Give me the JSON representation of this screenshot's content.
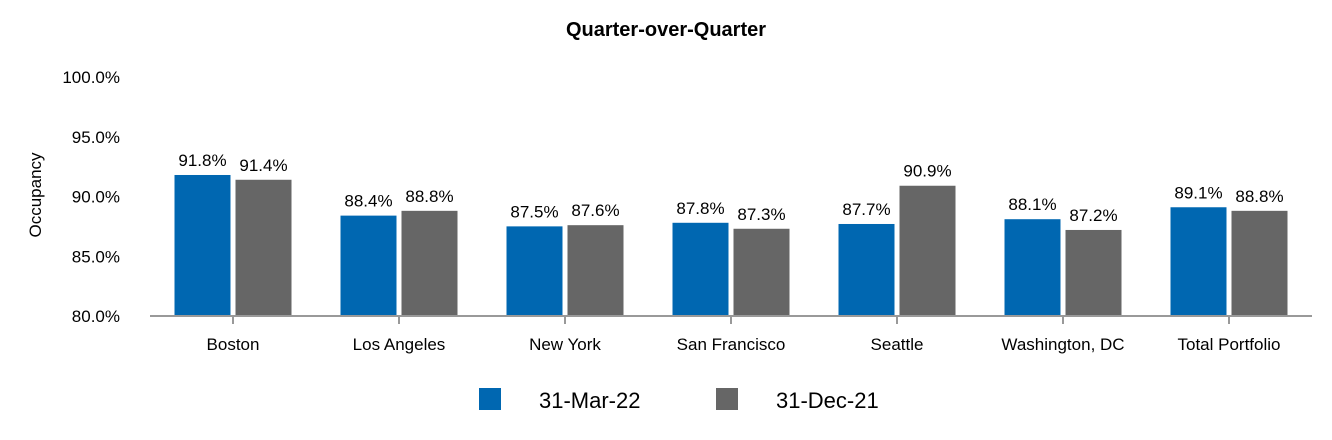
{
  "chart_data": {
    "type": "bar",
    "title": "Quarter-over-Quarter",
    "ylabel": "Occupancy",
    "xlabel": "",
    "ylim": [
      80,
      100
    ],
    "yticks": [
      "80.0%",
      "85.0%",
      "90.0%",
      "95.0%",
      "100.0%"
    ],
    "ytick_values": [
      80,
      85,
      90,
      95,
      100
    ],
    "categories": [
      "Boston",
      "Los Angeles",
      "New York",
      "San Francisco",
      "Seattle",
      "Washington, DC",
      "Total Portfolio"
    ],
    "series": [
      {
        "name": "31-Mar-22",
        "color": "#0067b1",
        "values": [
          91.8,
          88.4,
          87.5,
          87.8,
          87.7,
          88.1,
          89.1
        ],
        "labels": [
          "91.8%",
          "88.4%",
          "87.5%",
          "87.8%",
          "87.7%",
          "88.1%",
          "89.1%"
        ]
      },
      {
        "name": "31-Dec-21",
        "color": "#666666",
        "values": [
          91.4,
          88.8,
          87.6,
          87.3,
          90.9,
          87.2,
          88.8
        ],
        "labels": [
          "91.4%",
          "88.8%",
          "87.6%",
          "87.3%",
          "90.9%",
          "87.2%",
          "88.8%"
        ]
      }
    ],
    "grid": false,
    "legend_position": "bottom"
  }
}
